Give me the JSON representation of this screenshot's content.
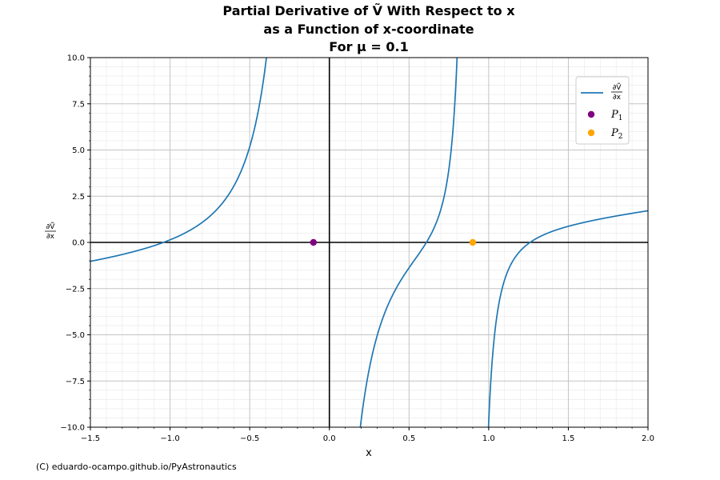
{
  "chart_data": {
    "type": "line",
    "title_lines": [
      "Partial Derivative of Ṽ With Respect to x",
      "as a Function of x-coordinate",
      "For μ = 0.1"
    ],
    "xlabel": "x",
    "ylabel": "∂Ṽ/∂x",
    "xlim": [
      -1.5,
      2.0
    ],
    "ylim": [
      -10.0,
      10.0
    ],
    "x_ticks": [
      "−1.5",
      "−1.0",
      "−0.5",
      "0.0",
      "0.5",
      "1.0",
      "1.5",
      "2.0"
    ],
    "x_tick_values": [
      -1.5,
      -1.0,
      -0.5,
      0.0,
      0.5,
      1.0,
      1.5,
      2.0
    ],
    "y_ticks": [
      "−10.0",
      "−7.5",
      "−5.0",
      "−2.5",
      "0.0",
      "2.5",
      "5.0",
      "7.5",
      "10.0"
    ],
    "y_tick_values": [
      -10.0,
      -7.5,
      -5.0,
      -2.5,
      0.0,
      2.5,
      5.0,
      7.5,
      10.0
    ],
    "grid": true,
    "minor_grid": true,
    "legend_position": "upper right",
    "mu": 0.1,
    "series": [
      {
        "name": "∂Ṽ/∂x",
        "kind": "line",
        "color": "#1f77b4",
        "points_description_note_free": true
      },
      {
        "name": "P1",
        "kind": "point",
        "color": "#800080",
        "x": -0.1,
        "y": 0.0
      },
      {
        "name": "P2",
        "kind": "point",
        "color": "#ffa500",
        "x": 0.9,
        "y": 0.0
      }
    ],
    "legend": [
      {
        "label_num": "∂Ṽ",
        "label_den": "∂x",
        "color": "#1f77b4"
      },
      {
        "label": "P",
        "sub": "1",
        "color": "#800080"
      },
      {
        "label": "P",
        "sub": "2",
        "color": "#ffa500"
      }
    ]
  },
  "credit": "(C) eduardo-ocampo.github.io/PyAstronautics"
}
